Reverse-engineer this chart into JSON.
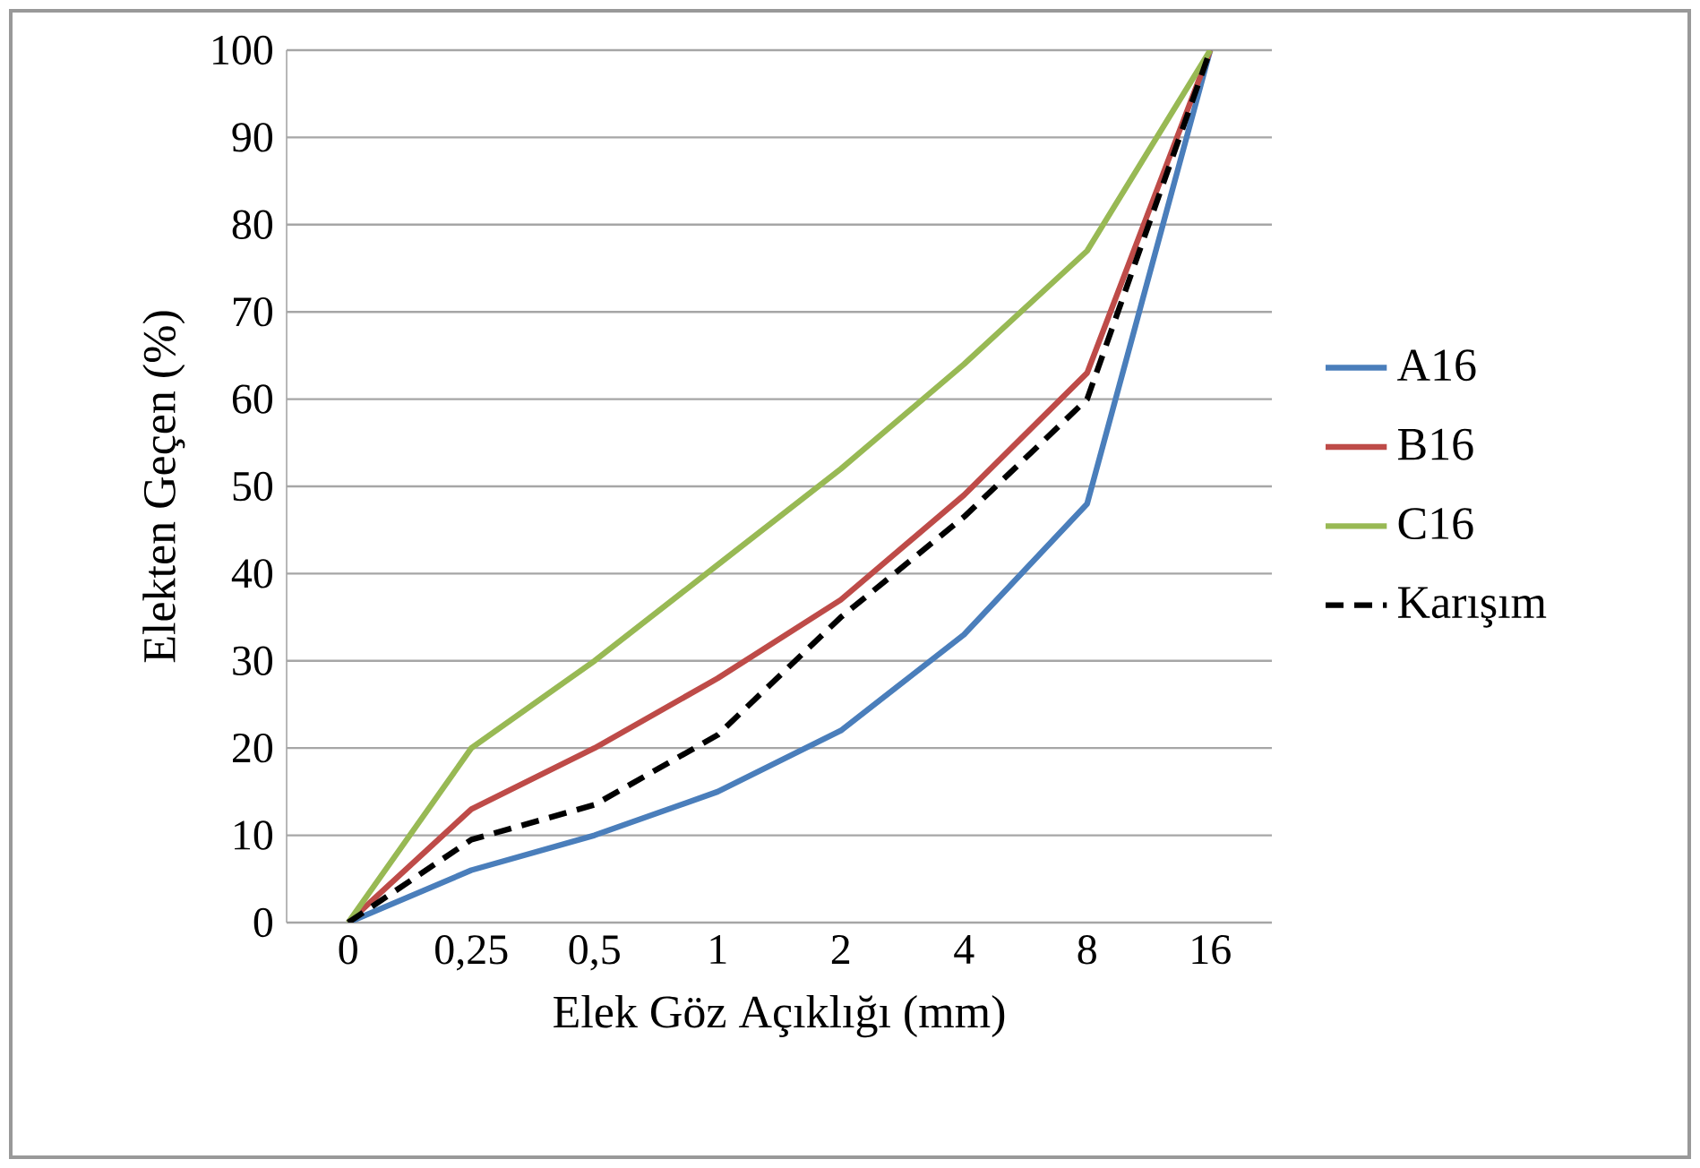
{
  "chart_data": {
    "type": "line",
    "xlabel": "Elek Göz Açıklığı  (mm)",
    "ylabel": "Elekten Geçen (%)",
    "categories": [
      "0",
      "0,25",
      "0,5",
      "1",
      "2",
      "4",
      "8",
      "16"
    ],
    "ylim": [
      0,
      100
    ],
    "yticks": [
      0,
      10,
      20,
      30,
      40,
      50,
      60,
      70,
      80,
      90,
      100
    ],
    "grid": "y",
    "legend": "right",
    "marker": "none",
    "series": [
      {
        "name": "A16",
        "color": "#4a7ebb",
        "line_style": "solid",
        "values": [
          0,
          6,
          10,
          15,
          22,
          33,
          48,
          100
        ]
      },
      {
        "name": "B16",
        "color": "#be4b48",
        "line_style": "solid",
        "values": [
          0,
          13,
          20,
          28,
          37,
          49,
          63,
          100
        ]
      },
      {
        "name": "C16",
        "color": "#98b954",
        "line_style": "solid",
        "values": [
          0,
          20,
          30,
          41,
          52,
          64,
          77,
          100
        ]
      },
      {
        "name": "Karışım",
        "color": "#000000",
        "line_style": "dashed",
        "values": [
          0,
          9.5,
          13.5,
          21.5,
          35,
          46.5,
          60,
          100
        ]
      }
    ]
  }
}
